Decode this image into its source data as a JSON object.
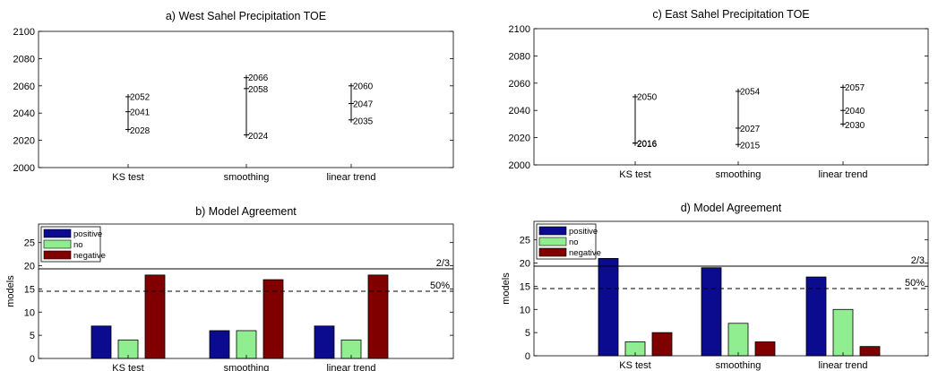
{
  "colors": {
    "positive": "#0b0b8f",
    "no": "#90ee90",
    "negative": "#800000",
    "frame": "#000000",
    "background": "#ffffff"
  },
  "chart_data": [
    {
      "id": "a",
      "type": "errorbar",
      "title": "a) West Sahel Precipitation TOE",
      "categories": [
        "KS test",
        "smoothing",
        "linear trend"
      ],
      "ylim": [
        2000,
        2100
      ],
      "yticks": [
        2000,
        2020,
        2040,
        2060,
        2080,
        2100
      ],
      "series": [
        {
          "low": 2028,
          "mid": 2041,
          "high": 2052,
          "low_label": "2028",
          "mid_label": "2041",
          "high_label": "2052"
        },
        {
          "low": 2024,
          "mid": 2058,
          "high": 2066,
          "low_label": "2024",
          "mid_label": "2058",
          "high_label": "2066"
        },
        {
          "low": 2035,
          "mid": 2047,
          "high": 2060,
          "low_label": "2035",
          "mid_label": "2047",
          "high_label": "2060"
        }
      ]
    },
    {
      "id": "c",
      "type": "errorbar",
      "title": "c) East Sahel Precipitation TOE",
      "categories": [
        "KS test",
        "smoothing",
        "linear trend"
      ],
      "ylim": [
        2000,
        2100
      ],
      "yticks": [
        2000,
        2020,
        2040,
        2060,
        2080,
        2100
      ],
      "series": [
        {
          "low": 2016,
          "mid": 2016,
          "high": 2050,
          "low_label": "2016",
          "mid_label": "2016",
          "high_label": "2050"
        },
        {
          "low": 2015,
          "mid": 2027,
          "high": 2054,
          "low_label": "2015",
          "mid_label": "2027",
          "high_label": "2054"
        },
        {
          "low": 2030,
          "mid": 2040,
          "high": 2057,
          "low_label": "2030",
          "mid_label": "2040",
          "high_label": "2057"
        }
      ]
    },
    {
      "id": "b",
      "type": "bar",
      "title": "b) Model Agreement",
      "ylabel": "models",
      "categories": [
        "KS test",
        "smoothing",
        "linear trend"
      ],
      "ylim": [
        0,
        29
      ],
      "yticks": [
        0,
        5,
        10,
        15,
        20,
        25
      ],
      "series": [
        {
          "name": "positive",
          "values": [
            7,
            6,
            7
          ]
        },
        {
          "name": "no",
          "values": [
            4,
            6,
            4
          ]
        },
        {
          "name": "negative",
          "values": [
            18,
            17,
            18
          ]
        }
      ],
      "reference_lines": [
        {
          "value": 19.33,
          "label": "2/3",
          "style": "solid"
        },
        {
          "value": 14.5,
          "label": "50%",
          "style": "dashed"
        }
      ],
      "legend_position": "top-left"
    },
    {
      "id": "d",
      "type": "bar",
      "title": "d) Model Agreement",
      "ylabel": "models",
      "categories": [
        "KS test",
        "smoothing",
        "linear trend"
      ],
      "ylim": [
        0,
        29
      ],
      "yticks": [
        0,
        5,
        10,
        15,
        20,
        25
      ],
      "series": [
        {
          "name": "positive",
          "values": [
            21,
            19,
            17
          ]
        },
        {
          "name": "no",
          "values": [
            3,
            7,
            10
          ]
        },
        {
          "name": "negative",
          "values": [
            5,
            3,
            2
          ]
        }
      ],
      "reference_lines": [
        {
          "value": 19.33,
          "label": "2/3",
          "style": "solid"
        },
        {
          "value": 14.5,
          "label": "50%",
          "style": "dashed"
        }
      ],
      "legend_position": "top-left"
    }
  ]
}
